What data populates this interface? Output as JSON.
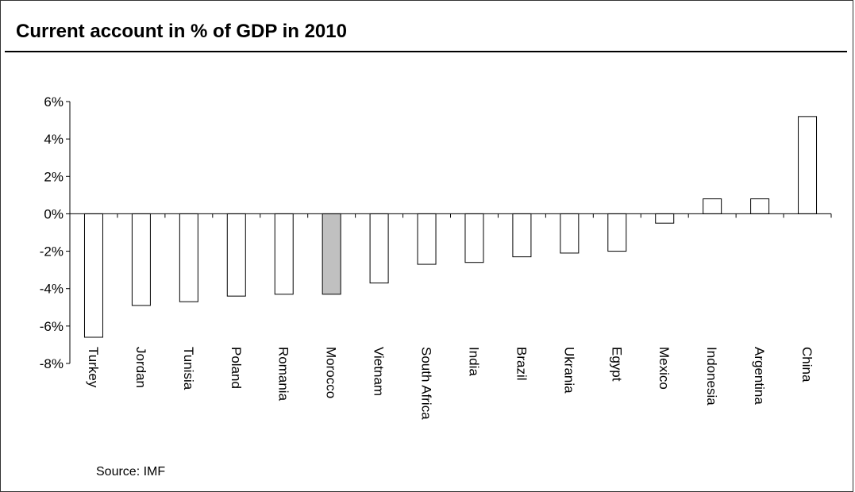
{
  "title": "Current account in % of GDP in 2010",
  "source": "Source: IMF",
  "colors": {
    "highlight_fill": "#c0c0c0",
    "highlight_label": "#e8401c",
    "bar_fill": "#ffffff",
    "bar_stroke": "#000000"
  },
  "chart_data": {
    "type": "bar",
    "title": "Current account in % of GDP in 2010",
    "xlabel": "",
    "ylabel": "",
    "ylim": [
      -8,
      6
    ],
    "yticks": [
      6,
      4,
      2,
      0,
      -2,
      -4,
      -6,
      -8
    ],
    "ytick_labels": [
      "6%",
      "4%",
      "2%",
      "0%",
      "-2%",
      "-4%",
      "-6%",
      "-8%"
    ],
    "categories": [
      "Turkey",
      "Jordan",
      "Tunisia",
      "Poland",
      "Romania",
      "Morocco",
      "Vietnam",
      "South Africa",
      "India",
      "Brazil",
      "Ukrania",
      "Egypt",
      "Mexico",
      "Indonesia",
      "Argentina",
      "China"
    ],
    "values": [
      -6.6,
      -4.9,
      -4.7,
      -4.4,
      -4.3,
      -4.3,
      -3.7,
      -2.7,
      -2.6,
      -2.3,
      -2.1,
      -2.0,
      -0.5,
      0.8,
      0.8,
      5.2
    ],
    "highlight": "Morocco",
    "grid": false,
    "legend": "none"
  }
}
